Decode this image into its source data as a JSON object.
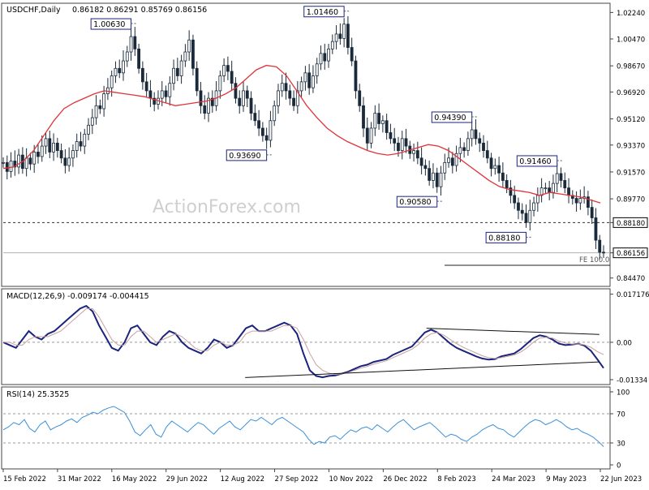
{
  "header": {
    "symbol": "USDCHF,Daily",
    "ohlc": "0.86182 0.86291 0.85769 0.86156"
  },
  "watermark": "ActionForex.com",
  "colors": {
    "candle": "#1a2a3a",
    "ma": "#e0343a",
    "macd": "#1a237e",
    "signal": "#c8a0a0",
    "rsi": "#3a8fd8",
    "trendline": "#111111",
    "grid": "#999999",
    "label_border": "#1a237e"
  },
  "chart_data": [
    {
      "type": "line",
      "panel": "price",
      "title": "USDCHF,Daily",
      "y_ticks": [
        "1.02240",
        "1.00470",
        "0.98670",
        "0.96920",
        "0.95120",
        "0.93370",
        "0.91570",
        "0.89770",
        "0.88180",
        "0.86156",
        "0.84470"
      ],
      "ylim": [
        0.8402,
        1.0275
      ],
      "x_ticks": [
        "15 Feb 2022",
        "31 Mar 2022",
        "16 May 2022",
        "29 Jun 2022",
        "12 Aug 2022",
        "27 Sep 2022",
        "10 Nov 2022",
        "26 Dec 2022",
        "8 Feb 2023",
        "24 Mar 2023",
        "9 May 2023",
        "22 Jun 2023"
      ],
      "close_series": [
        0.922,
        0.916,
        0.923,
        0.919,
        0.927,
        0.918,
        0.925,
        0.921,
        0.929,
        0.926,
        0.933,
        0.938,
        0.929,
        0.935,
        0.93,
        0.925,
        0.92,
        0.925,
        0.93,
        0.936,
        0.933,
        0.941,
        0.947,
        0.952,
        0.96,
        0.958,
        0.968,
        0.972,
        0.98,
        0.985,
        0.982,
        0.99,
        0.996,
        1.0063,
        0.998,
        0.985,
        0.976,
        0.97,
        0.965,
        0.961,
        0.965,
        0.97,
        0.966,
        0.975,
        0.985,
        0.98,
        0.99,
        0.996,
        1.004,
        0.985,
        0.97,
        0.96,
        0.955,
        0.965,
        0.96,
        0.97,
        0.98,
        0.987,
        0.983,
        0.975,
        0.965,
        0.96,
        0.97,
        0.965,
        0.955,
        0.95,
        0.945,
        0.94,
        0.9369,
        0.95,
        0.96,
        0.97,
        0.975,
        0.97,
        0.965,
        0.96,
        0.97,
        0.976,
        0.982,
        0.972,
        0.98,
        0.988,
        0.995,
        0.99,
        0.998,
        1.003,
        1.008,
        1.005,
        1.0146,
        0.999,
        0.99,
        0.97,
        0.96,
        0.945,
        0.935,
        0.945,
        0.955,
        0.948,
        0.95,
        0.942,
        0.938,
        0.935,
        0.93,
        0.938,
        0.933,
        0.928,
        0.93,
        0.925,
        0.92,
        0.918,
        0.91,
        0.915,
        0.9058,
        0.915,
        0.922,
        0.925,
        0.92,
        0.928,
        0.932,
        0.93,
        0.938,
        0.9439,
        0.938,
        0.935,
        0.93,
        0.925,
        0.918,
        0.92,
        0.915,
        0.91,
        0.905,
        0.9,
        0.895,
        0.89,
        0.888,
        0.8818,
        0.89,
        0.895,
        0.9,
        0.905,
        0.905,
        0.902,
        0.908,
        0.9146,
        0.91,
        0.905,
        0.9,
        0.898,
        0.895,
        0.898,
        0.899,
        0.892,
        0.885,
        0.87,
        0.862,
        0.8616
      ],
      "ma_series": [
        0.918,
        0.919,
        0.923,
        0.93,
        0.94,
        0.95,
        0.958,
        0.962,
        0.965,
        0.968,
        0.97,
        0.969,
        0.968,
        0.967,
        0.966,
        0.964,
        0.962,
        0.96,
        0.961,
        0.962,
        0.963,
        0.965,
        0.968,
        0.972,
        0.978,
        0.984,
        0.987,
        0.986,
        0.98,
        0.97,
        0.96,
        0.952,
        0.945,
        0.94,
        0.936,
        0.933,
        0.93,
        0.928,
        0.927,
        0.928,
        0.93,
        0.932,
        0.934,
        0.933,
        0.93,
        0.925,
        0.92,
        0.915,
        0.91,
        0.906,
        0.904,
        0.903,
        0.902,
        0.9,
        0.902,
        0.901,
        0.9,
        0.899,
        0.897,
        0.895
      ],
      "annotations": [
        {
          "label": "1.00630",
          "value": 1.0063
        },
        {
          "label": "1.01460",
          "value": 1.0146
        },
        {
          "label": "0.93690",
          "value": 0.9369
        },
        {
          "label": "0.94390",
          "value": 0.9439
        },
        {
          "label": "0.90580",
          "value": 0.9058
        },
        {
          "label": "0.91460",
          "value": 0.9146
        },
        {
          "label": "0.88180",
          "value": 0.8818
        }
      ],
      "levels": [
        {
          "label": "0.88180",
          "value": 0.8818,
          "style": "dashed"
        },
        {
          "label": "0.86156",
          "value": 0.86156,
          "style": "solid-grey",
          "current": true
        },
        {
          "label": "FE 100.0",
          "value": 0.8532,
          "style": "solid"
        }
      ]
    },
    {
      "type": "line",
      "panel": "macd",
      "title": "MACD(12,26,9) -0.009174 -0.004415",
      "y_ticks": [
        "0.017176",
        "0.00",
        "-0.01334"
      ],
      "ylim": [
        -0.0145,
        0.0185
      ],
      "series": [
        {
          "name": "MACD",
          "values": [
            0.0,
            -0.001,
            -0.002,
            0.001,
            0.004,
            0.002,
            0.001,
            0.003,
            0.004,
            0.006,
            0.008,
            0.01,
            0.012,
            0.013,
            0.011,
            0.006,
            0.002,
            -0.002,
            -0.003,
            0.0,
            0.005,
            0.006,
            0.003,
            0.0,
            -0.001,
            0.002,
            0.004,
            0.003,
            0.0,
            -0.002,
            -0.003,
            -0.004,
            -0.002,
            0.001,
            0.0,
            -0.002,
            -0.001,
            0.002,
            0.005,
            0.006,
            0.004,
            0.004,
            0.005,
            0.006,
            0.007,
            0.006,
            0.003,
            -0.004,
            -0.01,
            -0.012,
            -0.0125,
            -0.012,
            -0.0118,
            -0.0112,
            -0.0105,
            -0.0095,
            -0.0085,
            -0.008,
            -0.007,
            -0.0065,
            -0.006,
            -0.0045,
            -0.0035,
            -0.0025,
            -0.0015,
            0.001,
            0.0035,
            0.0045,
            0.0035,
            0.0015,
            -0.0005,
            -0.002,
            -0.003,
            -0.004,
            -0.005,
            -0.0058,
            -0.0062,
            -0.006,
            -0.005,
            -0.0045,
            -0.004,
            -0.0025,
            -0.0005,
            0.0015,
            0.0025,
            0.002,
            0.001,
            -0.0005,
            -0.001,
            -0.0008,
            -0.0005,
            -0.0012,
            -0.003,
            -0.006,
            -0.0092
          ]
        },
        {
          "name": "Signal",
          "values": [
            0.0,
            0.0,
            -0.001,
            -0.001,
            0.001,
            0.002,
            0.002,
            0.002,
            0.003,
            0.004,
            0.006,
            0.008,
            0.01,
            0.012,
            0.012,
            0.009,
            0.005,
            0.001,
            -0.001,
            -0.001,
            0.002,
            0.004,
            0.004,
            0.002,
            0.0,
            0.001,
            0.002,
            0.003,
            0.002,
            0.0,
            -0.002,
            -0.003,
            -0.003,
            -0.001,
            0.0,
            -0.001,
            -0.001,
            0.0,
            0.003,
            0.004,
            0.004,
            0.004,
            0.004,
            0.005,
            0.006,
            0.006,
            0.005,
            0.001,
            -0.004,
            -0.008,
            -0.01,
            -0.011,
            -0.0115,
            -0.0112,
            -0.0108,
            -0.01,
            -0.0092,
            -0.0086,
            -0.0078,
            -0.0072,
            -0.0066,
            -0.0055,
            -0.0045,
            -0.0035,
            -0.0025,
            -0.0008,
            0.0015,
            0.003,
            0.0035,
            0.0025,
            0.001,
            -0.0005,
            -0.0018,
            -0.0028,
            -0.0038,
            -0.0048,
            -0.0055,
            -0.0058,
            -0.0055,
            -0.005,
            -0.0045,
            -0.0035,
            -0.002,
            0.0,
            0.0015,
            0.0018,
            0.0015,
            0.0005,
            -0.0003,
            -0.0006,
            -0.0006,
            -0.0009,
            -0.0018,
            -0.0033,
            -0.0044
          ]
        }
      ],
      "trendlines": [
        {
          "from": [
            0.403,
            -0.0126
          ],
          "to": [
            0.993,
            -0.007
          ]
        },
        {
          "from": [
            0.705,
            0.005
          ],
          "to": [
            0.993,
            0.0028
          ]
        }
      ]
    },
    {
      "type": "line",
      "panel": "rsi",
      "title": "RSI(14) 25.3525",
      "y_ticks": [
        "100",
        "70",
        "30",
        "0"
      ],
      "ylim": [
        0,
        100
      ],
      "levels": [
        70,
        30
      ],
      "series": [
        {
          "name": "RSI",
          "values": [
            48,
            52,
            58,
            55,
            62,
            50,
            45,
            55,
            60,
            48,
            52,
            55,
            60,
            63,
            58,
            65,
            68,
            72,
            70,
            75,
            78,
            80,
            76,
            72,
            60,
            45,
            40,
            48,
            55,
            42,
            38,
            52,
            60,
            55,
            50,
            45,
            52,
            58,
            55,
            48,
            42,
            50,
            55,
            60,
            52,
            48,
            55,
            62,
            60,
            65,
            60,
            55,
            62,
            65,
            60,
            55,
            50,
            45,
            35,
            28,
            32,
            30,
            38,
            40,
            35,
            42,
            48,
            45,
            50,
            52,
            48,
            55,
            50,
            45,
            52,
            58,
            62,
            55,
            48,
            52,
            55,
            58,
            52,
            45,
            38,
            42,
            40,
            35,
            32,
            38,
            42,
            48,
            52,
            55,
            50,
            48,
            42,
            38,
            45,
            52,
            58,
            62,
            60,
            55,
            58,
            62,
            58,
            52,
            48,
            50,
            45,
            42,
            38,
            32,
            25
          ]
        }
      ]
    }
  ]
}
